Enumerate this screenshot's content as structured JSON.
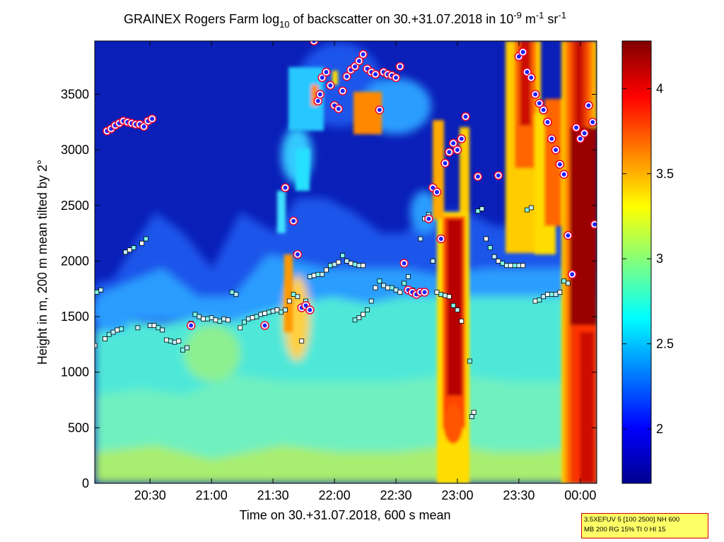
{
  "chart_data": {
    "type": "heatmap",
    "title": {
      "main": "GRAINEX Rogers Farm log",
      "sub_a": "10",
      "mid": " of backscatter on 30.+31.07.2018 in 10",
      "sup_b": "-9",
      "unit_m": " m",
      "sup_c": "-1",
      "unit_sr": " sr",
      "sup_d": "-1"
    },
    "xlabel": "Time on 30.+31.07.2018, 600 s mean",
    "ylabel": "Height in m, 200 m mean tilted by 2°",
    "x_ticks": [
      "20:30",
      "21:00",
      "21:30",
      "22:00",
      "22:30",
      "23:00",
      "23:30",
      "00:00"
    ],
    "y_ticks": [
      "0",
      "500",
      "1000",
      "1500",
      "2000",
      "2500",
      "3000",
      "3500"
    ],
    "y_tick_values": [
      0,
      500,
      1000,
      1500,
      2000,
      2500,
      3000,
      3500
    ],
    "ylim": [
      0,
      3980
    ],
    "xlim_minutes_after_20_00": [
      3,
      248
    ],
    "colorbar": {
      "ticks": [
        "2",
        "2.5",
        "3",
        "3.5",
        "4"
      ],
      "tick_values": [
        2,
        2.5,
        3,
        3.5,
        4
      ],
      "range": [
        1.68,
        4.28
      ],
      "colormap": "jet"
    },
    "info_box": [
      "3.5XEFUV 5 [100 2500] NH 600",
      "MB 200 RG 15% TI 0 HI 15"
    ],
    "series": [
      {
        "marker": "white/cyan squares",
        "points": [
          [
            3,
            1240
          ],
          [
            4,
            1720
          ],
          [
            6,
            1740
          ],
          [
            8,
            1300
          ],
          [
            10,
            1340
          ],
          [
            12,
            1360
          ],
          [
            14,
            1380
          ],
          [
            16,
            1390
          ],
          [
            18,
            2080
          ],
          [
            20,
            2100
          ],
          [
            22,
            2120
          ],
          [
            24,
            1400
          ],
          [
            26,
            2160
          ],
          [
            28,
            2200
          ],
          [
            30,
            1420
          ],
          [
            32,
            1420
          ],
          [
            34,
            1400
          ],
          [
            36,
            1380
          ],
          [
            38,
            1290
          ],
          [
            40,
            1280
          ],
          [
            42,
            1270
          ],
          [
            44,
            1280
          ],
          [
            46,
            1200
          ],
          [
            48,
            1220
          ],
          [
            50,
            1440
          ],
          [
            52,
            1520
          ],
          [
            54,
            1500
          ],
          [
            56,
            1480
          ],
          [
            58,
            1480
          ],
          [
            60,
            1490
          ],
          [
            62,
            1470
          ],
          [
            64,
            1460
          ],
          [
            66,
            1480
          ],
          [
            68,
            1470
          ],
          [
            70,
            1720
          ],
          [
            72,
            1700
          ],
          [
            74,
            1400
          ],
          [
            76,
            1450
          ],
          [
            78,
            1480
          ],
          [
            80,
            1490
          ],
          [
            82,
            1500
          ],
          [
            84,
            1520
          ],
          [
            86,
            1530
          ],
          [
            88,
            1540
          ],
          [
            90,
            1550
          ],
          [
            92,
            1560
          ],
          [
            94,
            1540
          ],
          [
            96,
            1560
          ],
          [
            98,
            1640
          ],
          [
            100,
            1700
          ],
          [
            102,
            1680
          ],
          [
            104,
            1280
          ],
          [
            106,
            1640
          ],
          [
            108,
            1860
          ],
          [
            110,
            1870
          ],
          [
            112,
            1880
          ],
          [
            114,
            1880
          ],
          [
            116,
            1920
          ],
          [
            118,
            1960
          ],
          [
            120,
            1970
          ],
          [
            122,
            1990
          ],
          [
            124,
            2050
          ],
          [
            126,
            2000
          ],
          [
            128,
            1980
          ],
          [
            130,
            1970
          ],
          [
            132,
            1960
          ],
          [
            134,
            1960
          ],
          [
            130,
            1470
          ],
          [
            132,
            1490
          ],
          [
            134,
            1520
          ],
          [
            136,
            1560
          ],
          [
            138,
            1640
          ],
          [
            140,
            1760
          ],
          [
            142,
            1820
          ],
          [
            144,
            1780
          ],
          [
            146,
            1760
          ],
          [
            148,
            1760
          ],
          [
            150,
            1740
          ],
          [
            152,
            1720
          ],
          [
            154,
            1800
          ],
          [
            156,
            1860
          ],
          [
            158,
            1740
          ],
          [
            160,
            1720
          ],
          [
            162,
            2200
          ],
          [
            164,
            2380
          ],
          [
            166,
            2420
          ],
          [
            168,
            2000
          ],
          [
            170,
            1720
          ],
          [
            172,
            1700
          ],
          [
            174,
            1690
          ],
          [
            176,
            1680
          ],
          [
            178,
            1600
          ],
          [
            180,
            1560
          ],
          [
            182,
            1460
          ],
          [
            186,
            1100
          ],
          [
            187,
            600
          ],
          [
            188,
            640
          ],
          [
            190,
            2450
          ],
          [
            192,
            2470
          ],
          [
            194,
            2200
          ],
          [
            196,
            2120
          ],
          [
            198,
            2040
          ],
          [
            200,
            2000
          ],
          [
            202,
            1980
          ],
          [
            204,
            1960
          ],
          [
            206,
            1960
          ],
          [
            208,
            1960
          ],
          [
            210,
            1960
          ],
          [
            212,
            1960
          ],
          [
            214,
            2460
          ],
          [
            216,
            2480
          ],
          [
            218,
            1640
          ],
          [
            220,
            1650
          ],
          [
            222,
            1680
          ],
          [
            224,
            1700
          ],
          [
            226,
            1700
          ],
          [
            228,
            1700
          ],
          [
            230,
            1720
          ],
          [
            232,
            1820
          ],
          [
            234,
            1800
          ]
        ]
      },
      {
        "marker": "blue/red circles",
        "points": [
          [
            9,
            3170
          ],
          [
            11,
            3190
          ],
          [
            13,
            3220
          ],
          [
            15,
            3240
          ],
          [
            17,
            3260
          ],
          [
            19,
            3250
          ],
          [
            21,
            3240
          ],
          [
            23,
            3230
          ],
          [
            25,
            3230
          ],
          [
            27,
            3210
          ],
          [
            29,
            3260
          ],
          [
            31,
            3280
          ],
          [
            50,
            1420
          ],
          [
            86,
            1420
          ],
          [
            96,
            2660
          ],
          [
            100,
            2360
          ],
          [
            102,
            2060
          ],
          [
            104,
            1580
          ],
          [
            106,
            1600
          ],
          [
            108,
            1560
          ],
          [
            110,
            3980
          ],
          [
            112,
            3440
          ],
          [
            113,
            3500
          ],
          [
            114,
            3650
          ],
          [
            116,
            3700
          ],
          [
            118,
            3580
          ],
          [
            120,
            3400
          ],
          [
            122,
            3370
          ],
          [
            124,
            3530
          ],
          [
            126,
            3660
          ],
          [
            128,
            3720
          ],
          [
            130,
            3750
          ],
          [
            132,
            3800
          ],
          [
            134,
            3860
          ],
          [
            136,
            3730
          ],
          [
            138,
            3700
          ],
          [
            140,
            3680
          ],
          [
            142,
            3360
          ],
          [
            144,
            3700
          ],
          [
            146,
            3680
          ],
          [
            148,
            3670
          ],
          [
            150,
            3650
          ],
          [
            152,
            3750
          ],
          [
            154,
            1980
          ],
          [
            156,
            1740
          ],
          [
            158,
            1720
          ],
          [
            160,
            1700
          ],
          [
            162,
            1720
          ],
          [
            164,
            1720
          ],
          [
            166,
            2380
          ],
          [
            168,
            2660
          ],
          [
            170,
            2620
          ],
          [
            172,
            2200
          ],
          [
            174,
            2880
          ],
          [
            176,
            2980
          ],
          [
            178,
            3060
          ],
          [
            180,
            3000
          ],
          [
            182,
            3100
          ],
          [
            184,
            3300
          ],
          [
            190,
            2760
          ],
          [
            200,
            2770
          ],
          [
            210,
            3840
          ],
          [
            212,
            3880
          ],
          [
            214,
            3700
          ],
          [
            216,
            3650
          ],
          [
            218,
            3500
          ],
          [
            220,
            3420
          ],
          [
            222,
            3360
          ],
          [
            224,
            3250
          ],
          [
            226,
            3100
          ],
          [
            228,
            3000
          ],
          [
            230,
            2870
          ],
          [
            232,
            2780
          ],
          [
            234,
            2230
          ],
          [
            236,
            1880
          ],
          [
            238,
            3200
          ],
          [
            240,
            3100
          ],
          [
            242,
            3150
          ],
          [
            244,
            3400
          ],
          [
            246,
            3250
          ],
          [
            247,
            2330
          ]
        ]
      }
    ]
  }
}
